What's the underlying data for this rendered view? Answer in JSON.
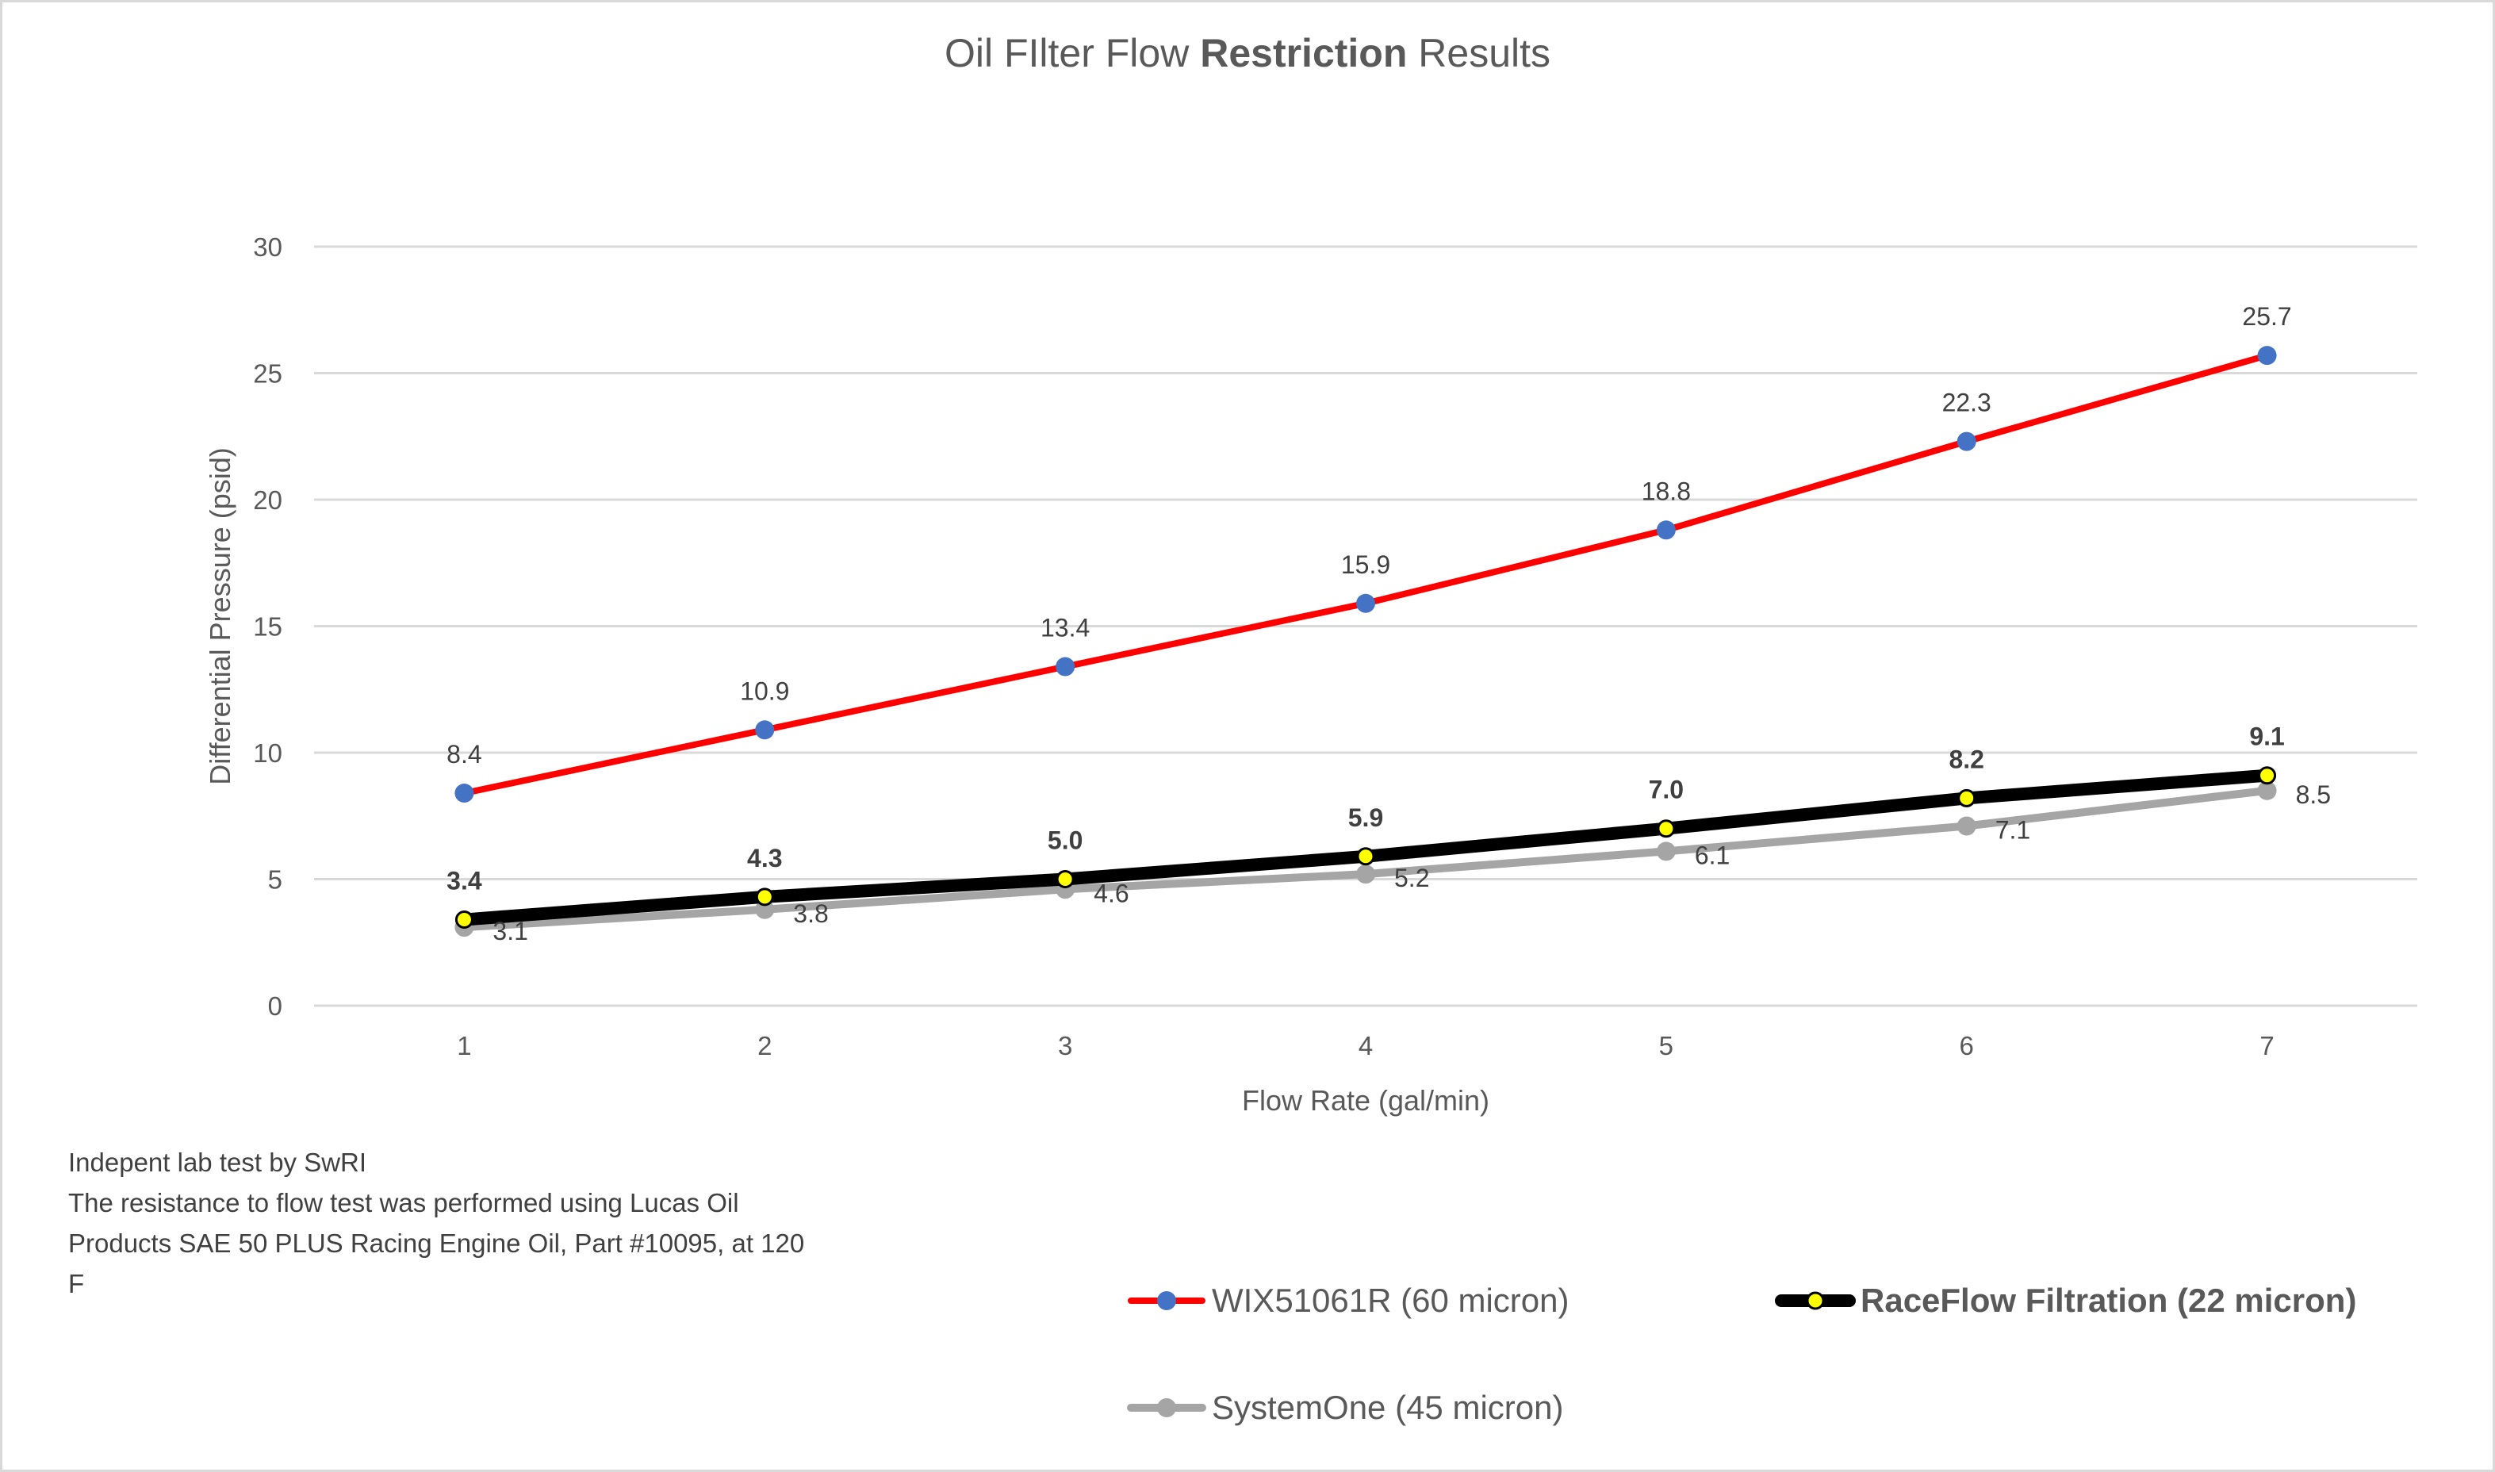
{
  "chart_data": {
    "type": "line",
    "title": "Oil FIlter Flow Restriction Results",
    "title_parts": [
      {
        "text": "Oil FIlter Flow ",
        "bold": false
      },
      {
        "text": "Restriction",
        "bold": true
      },
      {
        "text": " Results",
        "bold": false
      }
    ],
    "xlabel": "Flow Rate (gal/min)",
    "ylabel": "Differential Pressure (psid)",
    "categories": [
      "1",
      "2",
      "3",
      "4",
      "5",
      "6",
      "7"
    ],
    "x": [
      1,
      2,
      3,
      4,
      5,
      6,
      7
    ],
    "ylim": [
      0,
      30
    ],
    "yticks": [
      0,
      5,
      10,
      15,
      20,
      25,
      30
    ],
    "grid": true,
    "legend_position": "bottom-right",
    "series": [
      {
        "name": "WIX51061R (60 micron)",
        "values": [
          8.4,
          10.9,
          13.4,
          15.9,
          18.8,
          22.3,
          25.7
        ],
        "labels": [
          "8.4",
          "10.9",
          "13.4",
          "15.9",
          "18.8",
          "22.3",
          "25.7"
        ],
        "line_color": "#ff0000",
        "marker_color": "#4472c4",
        "label_position": "above",
        "bold": false
      },
      {
        "name": "RaceFlow Filtration (22 micron)",
        "values": [
          3.4,
          4.3,
          5.0,
          5.9,
          7.0,
          8.2,
          9.1
        ],
        "labels": [
          "3.4",
          "4.3",
          "5.0",
          "5.9",
          "7.0",
          "8.2",
          "9.1"
        ],
        "line_color": "#000000",
        "marker_color": "#ffff00",
        "label_position": "above",
        "bold": true
      },
      {
        "name": "SystemOne (45 micron)",
        "values": [
          3.1,
          3.8,
          4.6,
          5.2,
          6.1,
          7.1,
          8.5
        ],
        "labels": [
          "3.1",
          "3.8",
          "4.6",
          "5.2",
          "6.1",
          "7.1",
          "8.5"
        ],
        "line_color": "#a5a5a5",
        "marker_color": "#a5a5a5",
        "label_position": "right",
        "bold": false
      }
    ],
    "annotations": [
      "Indepent lab test by SwRI",
      "The resistance to flow test was performed using Lucas Oil",
      "Products SAE 50 PLUS Racing Engine Oil, Part #10095, at 120",
      "F"
    ]
  },
  "title": {
    "part1": "Oil FIlter Flow ",
    "part2": "Restriction",
    "part3": " Results"
  },
  "axes": {
    "x_title": "Flow Rate (gal/min)",
    "y_title": "Differential Pressure (psid)",
    "x_ticks": [
      "1",
      "2",
      "3",
      "4",
      "5",
      "6",
      "7"
    ],
    "y_ticks": [
      "0",
      "5",
      "10",
      "15",
      "20",
      "25",
      "30"
    ]
  },
  "note": {
    "lines": [
      "Indepent lab test by SwRI",
      "The resistance to flow test was performed using Lucas Oil",
      "Products SAE 50 PLUS Racing Engine Oil, Part #10095, at 120",
      "F"
    ]
  },
  "legend": {
    "items": [
      {
        "label": "WIX51061R (60 micron)"
      },
      {
        "label": "RaceFlow Filtration (22 micron)"
      },
      {
        "label": "SystemOne (45 micron)"
      }
    ]
  },
  "colors": {
    "text": "#595959",
    "label": "#404040",
    "grid": "#d9d9d9",
    "border": "#d9d9d9"
  }
}
